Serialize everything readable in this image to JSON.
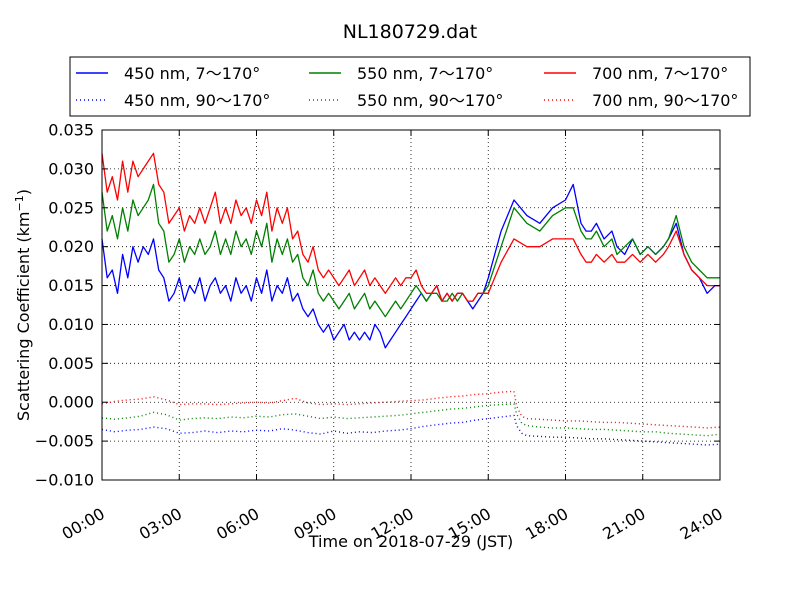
{
  "chart_data": {
    "type": "line",
    "title": "NL180729.dat",
    "xlabel": "Time on 2018-07-29 (JST)",
    "ylabel_main": "Scattering Coefficient (km",
    "ylabel_sup": "−1",
    "ylabel_close": ")",
    "xlim": [
      0,
      24
    ],
    "ylim": [
      -0.01,
      0.035
    ],
    "grid": true,
    "legend_position": "top",
    "xticks": [
      {
        "x": 0,
        "label": "00:00"
      },
      {
        "x": 3,
        "label": "03:00"
      },
      {
        "x": 6,
        "label": "06:00"
      },
      {
        "x": 9,
        "label": "09:00"
      },
      {
        "x": 12,
        "label": "12:00"
      },
      {
        "x": 15,
        "label": "15:00"
      },
      {
        "x": 18,
        "label": "18:00"
      },
      {
        "x": 21,
        "label": "21:00"
      },
      {
        "x": 24,
        "label": "24:00"
      }
    ],
    "yticks": [
      {
        "y": 0.035,
        "label": "0.035"
      },
      {
        "y": 0.03,
        "label": "0.030"
      },
      {
        "y": 0.025,
        "label": "0.025"
      },
      {
        "y": 0.02,
        "label": "0.020"
      },
      {
        "y": 0.015,
        "label": "0.015"
      },
      {
        "y": 0.01,
        "label": "0.010"
      },
      {
        "y": 0.005,
        "label": "0.005"
      },
      {
        "y": 0.0,
        "label": "0.000"
      },
      {
        "y": -0.005,
        "label": "−0.005"
      },
      {
        "y": -0.01,
        "label": "−0.010"
      }
    ],
    "series": [
      {
        "name": "450 nm, 7～170°",
        "color": "#0000ff",
        "style": "solid",
        "x": [
          0,
          0.2,
          0.4,
          0.6,
          0.8,
          1,
          1.2,
          1.4,
          1.6,
          1.8,
          2,
          2.2,
          2.4,
          2.6,
          2.8,
          3,
          3.2,
          3.4,
          3.6,
          3.8,
          4,
          4.2,
          4.4,
          4.6,
          4.8,
          5,
          5.2,
          5.4,
          5.6,
          5.8,
          6,
          6.2,
          6.4,
          6.6,
          6.8,
          7,
          7.2,
          7.4,
          7.6,
          7.8,
          8,
          8.2,
          8.4,
          8.6,
          8.8,
          9,
          9.2,
          9.4,
          9.6,
          9.8,
          10,
          10.2,
          10.4,
          10.6,
          10.8,
          11,
          11.2,
          11.4,
          11.6,
          11.8,
          12,
          12.2,
          12.4,
          12.6,
          12.8,
          13,
          13.2,
          13.4,
          13.6,
          13.8,
          14,
          14.2,
          14.4,
          14.6,
          14.8,
          15,
          15.5,
          16,
          16.5,
          17,
          17.5,
          18,
          18.3,
          18.6,
          18.8,
          19,
          19.2,
          19.5,
          19.8,
          20,
          20.3,
          20.6,
          20.9,
          21.2,
          21.5,
          21.8,
          22,
          22.3,
          22.6,
          22.9,
          23.2,
          23.5,
          23.8,
          24
        ],
        "y": [
          0.021,
          0.016,
          0.017,
          0.014,
          0.019,
          0.016,
          0.02,
          0.018,
          0.02,
          0.019,
          0.021,
          0.017,
          0.016,
          0.013,
          0.014,
          0.016,
          0.013,
          0.015,
          0.014,
          0.016,
          0.013,
          0.015,
          0.016,
          0.014,
          0.015,
          0.013,
          0.016,
          0.014,
          0.015,
          0.013,
          0.016,
          0.014,
          0.017,
          0.013,
          0.015,
          0.014,
          0.016,
          0.013,
          0.014,
          0.012,
          0.011,
          0.012,
          0.01,
          0.009,
          0.01,
          0.008,
          0.009,
          0.01,
          0.008,
          0.009,
          0.008,
          0.009,
          0.008,
          0.01,
          0.009,
          0.007,
          0.008,
          0.009,
          0.01,
          0.011,
          0.012,
          0.013,
          0.014,
          0.013,
          0.014,
          0.015,
          0.013,
          0.014,
          0.013,
          0.014,
          0.014,
          0.013,
          0.012,
          0.013,
          0.014,
          0.016,
          0.022,
          0.026,
          0.024,
          0.023,
          0.025,
          0.026,
          0.028,
          0.023,
          0.022,
          0.022,
          0.023,
          0.021,
          0.022,
          0.02,
          0.019,
          0.021,
          0.019,
          0.02,
          0.019,
          0.02,
          0.021,
          0.023,
          0.019,
          0.017,
          0.016,
          0.014,
          0.015,
          0.015
        ]
      },
      {
        "name": "550 nm, 7～170°",
        "color": "#008000",
        "style": "solid",
        "x": [
          0,
          0.2,
          0.4,
          0.6,
          0.8,
          1,
          1.2,
          1.4,
          1.6,
          1.8,
          2,
          2.2,
          2.4,
          2.6,
          2.8,
          3,
          3.2,
          3.4,
          3.6,
          3.8,
          4,
          4.2,
          4.4,
          4.6,
          4.8,
          5,
          5.2,
          5.4,
          5.6,
          5.8,
          6,
          6.2,
          6.4,
          6.6,
          6.8,
          7,
          7.2,
          7.4,
          7.6,
          7.8,
          8,
          8.2,
          8.4,
          8.6,
          8.8,
          9,
          9.2,
          9.4,
          9.6,
          9.8,
          10,
          10.2,
          10.4,
          10.6,
          10.8,
          11,
          11.2,
          11.4,
          11.6,
          11.8,
          12,
          12.2,
          12.4,
          12.6,
          12.8,
          13,
          13.2,
          13.4,
          13.6,
          13.8,
          14,
          14.2,
          14.4,
          14.6,
          14.8,
          15,
          15.5,
          16,
          16.5,
          17,
          17.5,
          18,
          18.3,
          18.6,
          18.8,
          19,
          19.2,
          19.5,
          19.8,
          20,
          20.3,
          20.6,
          20.9,
          21.2,
          21.5,
          21.8,
          22,
          22.3,
          22.6,
          22.9,
          23.2,
          23.5,
          23.8,
          24
        ],
        "y": [
          0.027,
          0.022,
          0.024,
          0.021,
          0.025,
          0.022,
          0.026,
          0.024,
          0.025,
          0.026,
          0.028,
          0.023,
          0.022,
          0.018,
          0.019,
          0.021,
          0.018,
          0.02,
          0.019,
          0.021,
          0.019,
          0.02,
          0.022,
          0.019,
          0.021,
          0.019,
          0.022,
          0.02,
          0.021,
          0.019,
          0.022,
          0.02,
          0.023,
          0.018,
          0.021,
          0.019,
          0.021,
          0.018,
          0.019,
          0.016,
          0.015,
          0.017,
          0.014,
          0.013,
          0.014,
          0.013,
          0.012,
          0.013,
          0.014,
          0.012,
          0.013,
          0.014,
          0.012,
          0.013,
          0.012,
          0.011,
          0.012,
          0.013,
          0.012,
          0.013,
          0.014,
          0.015,
          0.014,
          0.013,
          0.014,
          0.014,
          0.013,
          0.013,
          0.014,
          0.013,
          0.014,
          0.013,
          0.013,
          0.014,
          0.014,
          0.015,
          0.02,
          0.025,
          0.023,
          0.022,
          0.024,
          0.025,
          0.025,
          0.022,
          0.021,
          0.021,
          0.022,
          0.02,
          0.021,
          0.019,
          0.02,
          0.021,
          0.019,
          0.02,
          0.019,
          0.02,
          0.021,
          0.024,
          0.02,
          0.018,
          0.017,
          0.016,
          0.016,
          0.016
        ]
      },
      {
        "name": "700 nm, 7～170°",
        "color": "#ff0000",
        "style": "solid",
        "x": [
          0,
          0.2,
          0.4,
          0.6,
          0.8,
          1,
          1.2,
          1.4,
          1.6,
          1.8,
          2,
          2.2,
          2.4,
          2.6,
          2.8,
          3,
          3.2,
          3.4,
          3.6,
          3.8,
          4,
          4.2,
          4.4,
          4.6,
          4.8,
          5,
          5.2,
          5.4,
          5.6,
          5.8,
          6,
          6.2,
          6.4,
          6.6,
          6.8,
          7,
          7.2,
          7.4,
          7.6,
          7.8,
          8,
          8.2,
          8.4,
          8.6,
          8.8,
          9,
          9.2,
          9.4,
          9.6,
          9.8,
          10,
          10.2,
          10.4,
          10.6,
          10.8,
          11,
          11.2,
          11.4,
          11.6,
          11.8,
          12,
          12.2,
          12.4,
          12.6,
          12.8,
          13,
          13.2,
          13.4,
          13.6,
          13.8,
          14,
          14.2,
          14.4,
          14.6,
          14.8,
          15,
          15.5,
          16,
          16.5,
          17,
          17.5,
          18,
          18.3,
          18.6,
          18.8,
          19,
          19.2,
          19.5,
          19.8,
          20,
          20.3,
          20.6,
          20.9,
          21.2,
          21.5,
          21.8,
          22,
          22.3,
          22.6,
          22.9,
          23.2,
          23.5,
          23.8,
          24
        ],
        "y": [
          0.032,
          0.027,
          0.029,
          0.026,
          0.031,
          0.027,
          0.031,
          0.029,
          0.03,
          0.031,
          0.032,
          0.028,
          0.027,
          0.023,
          0.024,
          0.025,
          0.022,
          0.024,
          0.023,
          0.025,
          0.023,
          0.025,
          0.027,
          0.023,
          0.025,
          0.023,
          0.026,
          0.024,
          0.025,
          0.023,
          0.026,
          0.024,
          0.027,
          0.022,
          0.025,
          0.023,
          0.025,
          0.021,
          0.022,
          0.019,
          0.018,
          0.02,
          0.017,
          0.016,
          0.017,
          0.016,
          0.015,
          0.016,
          0.017,
          0.015,
          0.016,
          0.017,
          0.015,
          0.016,
          0.015,
          0.014,
          0.015,
          0.016,
          0.015,
          0.016,
          0.016,
          0.017,
          0.015,
          0.014,
          0.014,
          0.015,
          0.013,
          0.014,
          0.013,
          0.014,
          0.014,
          0.013,
          0.013,
          0.014,
          0.014,
          0.014,
          0.018,
          0.021,
          0.02,
          0.02,
          0.021,
          0.021,
          0.021,
          0.019,
          0.018,
          0.018,
          0.019,
          0.018,
          0.019,
          0.018,
          0.018,
          0.019,
          0.018,
          0.019,
          0.018,
          0.019,
          0.02,
          0.022,
          0.019,
          0.017,
          0.016,
          0.015,
          0.015,
          0.015
        ]
      },
      {
        "name": "450 nm, 90～170°",
        "color": "#0000ff",
        "style": "dotted",
        "x": [
          0,
          0.5,
          1,
          1.5,
          2,
          2.5,
          3,
          3.5,
          4,
          4.5,
          5,
          5.5,
          6,
          6.5,
          7,
          7.5,
          8,
          8.5,
          9,
          9.5,
          10,
          10.5,
          11,
          11.5,
          12,
          12.5,
          13,
          13.5,
          14,
          14.5,
          15,
          15.5,
          16,
          16.1,
          16.3,
          16.5,
          17,
          17.5,
          18,
          18.5,
          19,
          19.5,
          20,
          20.5,
          21,
          21.5,
          22,
          22.5,
          23,
          23.5,
          24
        ],
        "y": [
          -0.0035,
          -0.0038,
          -0.0036,
          -0.0035,
          -0.0032,
          -0.0034,
          -0.004,
          -0.0039,
          -0.0037,
          -0.0039,
          -0.0037,
          -0.0038,
          -0.0036,
          -0.0037,
          -0.0034,
          -0.0036,
          -0.0039,
          -0.0041,
          -0.0037,
          -0.004,
          -0.0038,
          -0.0039,
          -0.0037,
          -0.0036,
          -0.0034,
          -0.0031,
          -0.0029,
          -0.0027,
          -0.0026,
          -0.0023,
          -0.0021,
          -0.0019,
          -0.0017,
          -0.003,
          -0.004,
          -0.0043,
          -0.0044,
          -0.0045,
          -0.0045,
          -0.0046,
          -0.0047,
          -0.0047,
          -0.0048,
          -0.0049,
          -0.005,
          -0.0051,
          -0.0052,
          -0.0053,
          -0.0054,
          -0.0055,
          -0.0054
        ]
      },
      {
        "name": "550 nm, 90～170°",
        "color": "#008000",
        "style": "dotted",
        "x": [
          0,
          0.5,
          1,
          1.5,
          2,
          2.5,
          3,
          3.5,
          4,
          4.5,
          5,
          5.5,
          6,
          6.5,
          7,
          7.5,
          8,
          8.5,
          9,
          9.5,
          10,
          10.5,
          11,
          11.5,
          12,
          12.5,
          13,
          13.5,
          14,
          14.5,
          15,
          15.5,
          16,
          16.1,
          16.3,
          16.5,
          17,
          17.5,
          18,
          18.5,
          19,
          19.5,
          20,
          20.5,
          21,
          21.5,
          22,
          22.5,
          23,
          23.5,
          24
        ],
        "y": [
          -0.002,
          -0.0022,
          -0.002,
          -0.0018,
          -0.0013,
          -0.0016,
          -0.0023,
          -0.0021,
          -0.002,
          -0.0021,
          -0.0019,
          -0.002,
          -0.0018,
          -0.0019,
          -0.0016,
          -0.0015,
          -0.0018,
          -0.0021,
          -0.0019,
          -0.0021,
          -0.002,
          -0.0019,
          -0.0018,
          -0.0017,
          -0.0015,
          -0.0013,
          -0.0011,
          -0.0009,
          -0.0008,
          -0.0006,
          -0.0004,
          -0.0003,
          -0.0002,
          -0.0015,
          -0.0027,
          -0.003,
          -0.0032,
          -0.0033,
          -0.0033,
          -0.0034,
          -0.0035,
          -0.0035,
          -0.0036,
          -0.0037,
          -0.0038,
          -0.0038,
          -0.004,
          -0.0041,
          -0.0042,
          -0.0043,
          -0.0041
        ]
      },
      {
        "name": "700 nm, 90～170°",
        "color": "#ff0000",
        "style": "dotted",
        "x": [
          0,
          0.5,
          1,
          1.5,
          2,
          2.5,
          3,
          3.5,
          4,
          4.5,
          5,
          5.5,
          6,
          6.5,
          7,
          7.5,
          8,
          8.5,
          9,
          9.5,
          10,
          10.5,
          11,
          11.5,
          12,
          12.5,
          13,
          13.5,
          14,
          14.5,
          15,
          15.5,
          16,
          16.1,
          16.3,
          16.5,
          17,
          17.5,
          18,
          18.5,
          19,
          19.5,
          20,
          20.5,
          21,
          21.5,
          22,
          22.5,
          23,
          23.5,
          24
        ],
        "y": [
          -0.0002,
          0.0001,
          0.0003,
          0.0004,
          0.0007,
          0.0003,
          -0.0003,
          -0.0002,
          -0.0002,
          -0.0003,
          -0.0002,
          -0.0001,
          0.0,
          -0.0001,
          0.0002,
          0.0005,
          -0.0001,
          -0.0003,
          -0.0002,
          -0.0003,
          -0.0002,
          -0.0001,
          0.0,
          0.0001,
          0.0002,
          0.0003,
          0.0005,
          0.0007,
          0.0008,
          0.001,
          0.0011,
          0.0013,
          0.0014,
          -0.0005,
          -0.0018,
          -0.0021,
          -0.0022,
          -0.0023,
          -0.0024,
          -0.0024,
          -0.0025,
          -0.0026,
          -0.0026,
          -0.0027,
          -0.0028,
          -0.0029,
          -0.003,
          -0.0031,
          -0.0032,
          -0.0033,
          -0.0032
        ]
      }
    ],
    "legend": [
      "450 nm, 7～170°",
      "550 nm, 7～170°",
      "700 nm, 7～170°",
      "450 nm, 90～170°",
      "550 nm, 90～170°",
      "700 nm, 90～170°"
    ]
  }
}
